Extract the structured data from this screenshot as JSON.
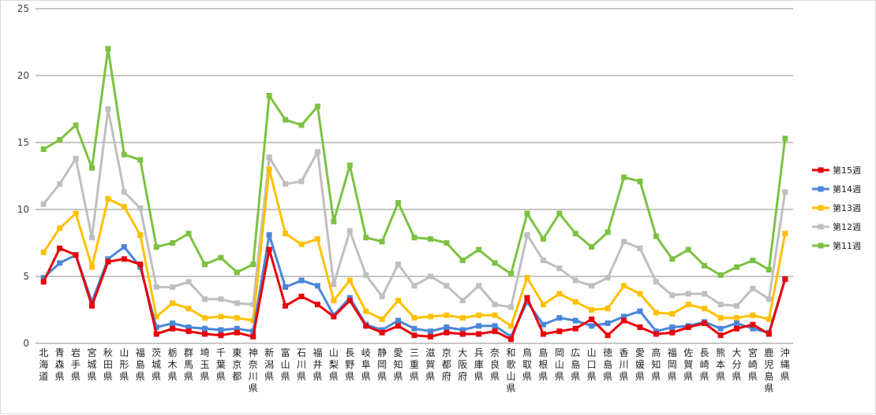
{
  "chart_data": {
    "type": "line",
    "title": "",
    "xlabel": "",
    "ylabel": "",
    "ylim": [
      0,
      25
    ],
    "yticks": [
      0,
      5,
      10,
      15,
      20,
      25
    ],
    "grid": true,
    "legend_position": "right",
    "categories": [
      "北海道",
      "青森県",
      "岩手県",
      "宮城県",
      "秋田県",
      "山形県",
      "福島県",
      "茨城県",
      "栃木県",
      "群馬県",
      "埼玉県",
      "千葉県",
      "東京都",
      "神奈川県",
      "新潟県",
      "富山県",
      "石川県",
      "福井県",
      "山梨県",
      "長野県",
      "岐阜県",
      "静岡県",
      "愛知県",
      "三重県",
      "滋賀県",
      "京都府",
      "大阪府",
      "兵庫県",
      "奈良県",
      "和歌山県",
      "鳥取県",
      "島根県",
      "岡山県",
      "広島県",
      "山口県",
      "徳島県",
      "香川県",
      "愛媛県",
      "高知県",
      "福岡県",
      "佐賀県",
      "長崎県",
      "熊本県",
      "大分県",
      "宮崎県",
      "鹿児島県",
      "沖縄県"
    ],
    "series": [
      {
        "name": "第15週",
        "color": "#e8000b",
        "values": [
          4.6,
          7.1,
          6.6,
          2.8,
          6.1,
          6.3,
          5.9,
          0.7,
          1.1,
          0.9,
          0.7,
          0.6,
          0.8,
          0.5,
          7.0,
          2.8,
          3.5,
          2.9,
          2.0,
          3.2,
          1.3,
          0.8,
          1.3,
          0.6,
          0.5,
          0.8,
          0.7,
          0.7,
          0.9,
          0.3,
          3.4,
          0.7,
          0.9,
          1.1,
          1.8,
          0.6,
          1.7,
          1.2,
          0.7,
          0.8,
          1.2,
          1.5,
          0.6,
          1.1,
          1.4,
          0.7,
          4.8
        ]
      },
      {
        "name": "第14週",
        "color": "#4a86d8",
        "values": [
          4.9,
          6.0,
          6.6,
          3.1,
          6.3,
          7.2,
          5.7,
          1.2,
          1.5,
          1.2,
          1.1,
          1.0,
          1.1,
          0.9,
          8.1,
          4.2,
          4.7,
          4.3,
          2.1,
          3.4,
          1.4,
          1.0,
          1.7,
          1.1,
          0.9,
          1.2,
          1.0,
          1.3,
          1.3,
          0.5,
          3.1,
          1.4,
          1.9,
          1.7,
          1.3,
          1.5,
          2.0,
          2.4,
          0.9,
          1.2,
          1.3,
          1.6,
          1.1,
          1.5,
          1.1,
          0.8,
          4.8
        ]
      },
      {
        "name": "第13週",
        "color": "#ffc000",
        "values": [
          6.8,
          8.6,
          9.7,
          5.7,
          10.8,
          10.2,
          8.1,
          2.0,
          3.0,
          2.6,
          1.9,
          2.0,
          1.9,
          1.7,
          13.0,
          8.2,
          7.4,
          7.8,
          3.2,
          4.7,
          2.4,
          1.8,
          3.2,
          1.9,
          2.0,
          2.1,
          1.9,
          2.1,
          2.1,
          1.3,
          4.9,
          2.9,
          3.7,
          3.1,
          2.5,
          2.6,
          4.3,
          3.7,
          2.3,
          2.2,
          2.9,
          2.6,
          1.9,
          1.9,
          2.1,
          1.8,
          8.2
        ]
      },
      {
        "name": "第12週",
        "color": "#bfbfbf",
        "values": [
          10.4,
          11.9,
          13.8,
          7.9,
          17.5,
          11.3,
          10.1,
          4.2,
          4.2,
          4.6,
          3.3,
          3.3,
          3.0,
          2.9,
          13.9,
          11.9,
          12.1,
          14.3,
          4.4,
          8.4,
          5.1,
          3.5,
          5.9,
          4.3,
          5.0,
          4.3,
          3.2,
          4.3,
          2.9,
          2.7,
          8.1,
          6.2,
          5.6,
          4.7,
          4.3,
          4.9,
          7.6,
          7.1,
          4.6,
          3.6,
          3.7,
          3.7,
          2.9,
          2.8,
          4.1,
          3.3,
          11.3
        ]
      },
      {
        "name": "第11週",
        "color": "#7cc242",
        "values": [
          14.5,
          15.2,
          16.3,
          13.1,
          22.0,
          14.1,
          13.7,
          7.2,
          7.5,
          8.2,
          5.9,
          6.4,
          5.3,
          5.9,
          18.5,
          16.7,
          16.3,
          17.7,
          9.1,
          13.3,
          7.9,
          7.6,
          10.5,
          7.9,
          7.8,
          7.5,
          6.2,
          7.0,
          6.0,
          5.2,
          9.7,
          7.8,
          9.7,
          8.2,
          7.2,
          8.3,
          12.4,
          12.1,
          8.0,
          6.3,
          7.0,
          5.8,
          5.1,
          5.7,
          6.2,
          5.5,
          15.3
        ]
      }
    ]
  }
}
